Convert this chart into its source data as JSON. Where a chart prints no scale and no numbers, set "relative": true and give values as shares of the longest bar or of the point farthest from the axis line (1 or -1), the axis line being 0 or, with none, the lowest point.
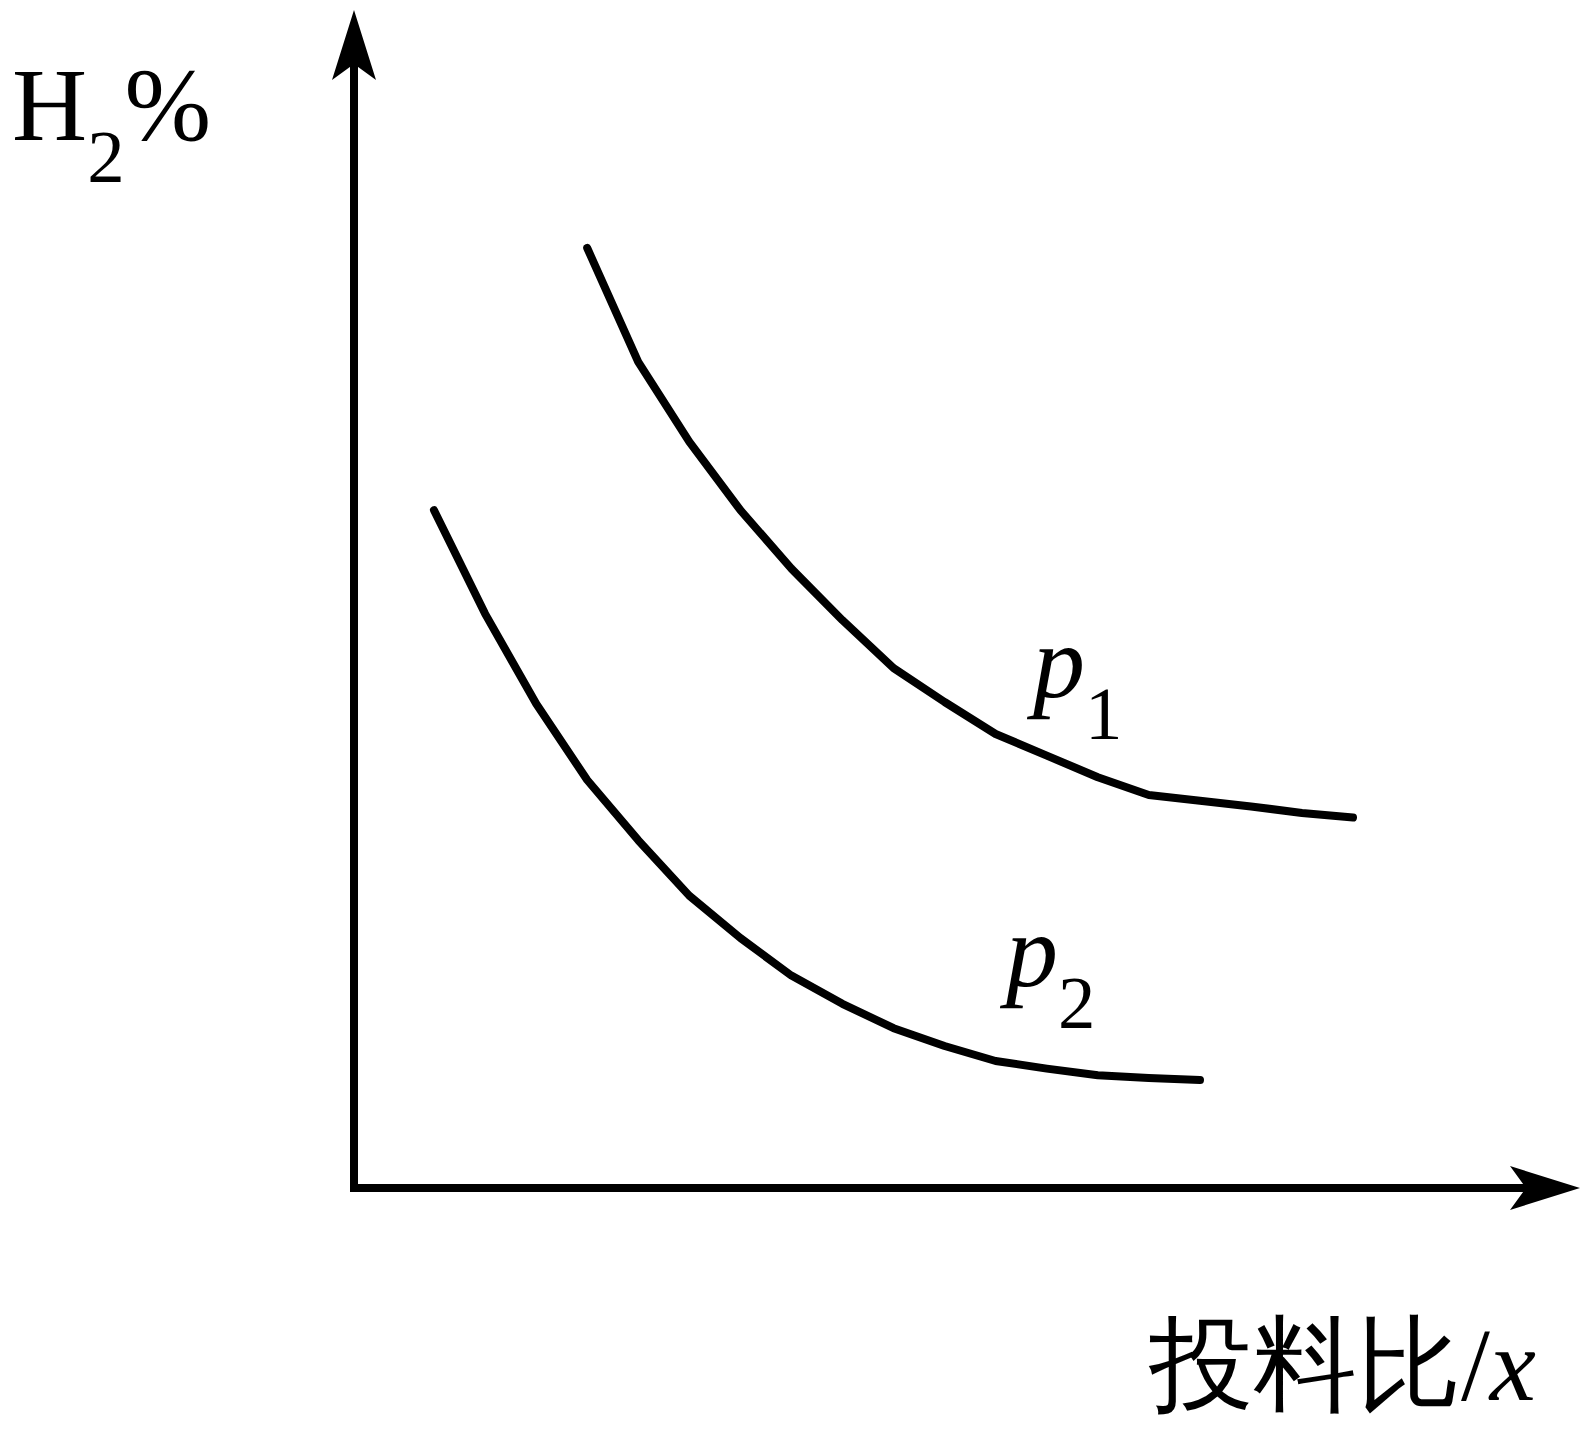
{
  "chart_data": {
    "type": "line",
    "relative": true,
    "ylabel": "H$_{2}$%",
    "xlabel": "投料比/*x*",
    "marker": "none",
    "line_style": "solid",
    "categories": [
      null,
      null,
      null,
      null,
      null,
      null,
      null,
      null,
      null,
      null,
      null,
      null,
      null,
      null,
      null,
      null,
      null,
      null,
      null
    ],
    "series": [
      {
        "name": "*p*$_{1}$",
        "color": "#000000",
        "values": [
          null,
          null,
          null,
          1.0,
          0.879,
          0.794,
          0.721,
          0.659,
          0.604,
          0.553,
          0.517,
          0.483,
          0.46,
          0.437,
          0.418,
          0.412,
          0.406,
          0.399,
          0.394
        ]
      },
      {
        "name": "*p*$_{2}$",
        "color": "#000000",
        "values": [
          0.721,
          0.611,
          0.515,
          0.434,
          0.37,
          0.311,
          0.266,
          0.226,
          0.196,
          0.17,
          0.151,
          0.135,
          0.127,
          0.12,
          0.117,
          0.115,
          null,
          null,
          null
        ]
      }
    ]
  }
}
